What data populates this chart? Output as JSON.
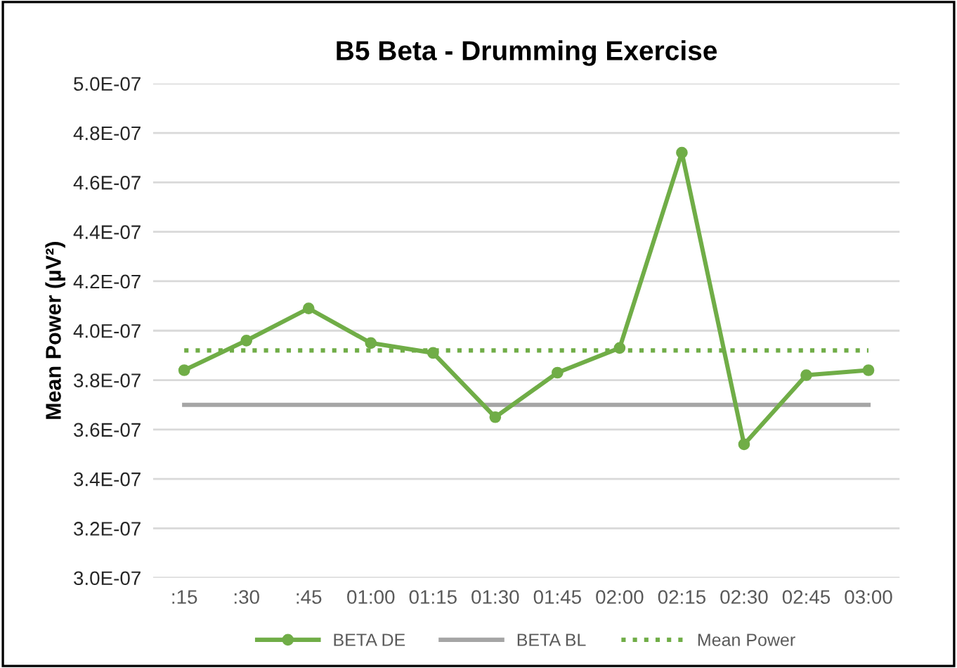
{
  "chart_data": {
    "type": "line",
    "title": "B5 Beta - Drumming Exercise",
    "ylabel": "Mean Power (µV²)",
    "categories": [
      ":15",
      ":30",
      ":45",
      "01:00",
      "01:15",
      "01:30",
      "01:45",
      "02:00",
      "02:15",
      "02:30",
      "02:45",
      "03:00"
    ],
    "series": [
      {
        "name": "BETA DE",
        "color": "#70ad47",
        "marker": "circle",
        "line_style": "solid",
        "values": [
          3.84e-07,
          3.96e-07,
          4.09e-07,
          3.95e-07,
          3.91e-07,
          3.65e-07,
          3.83e-07,
          3.93e-07,
          4.72e-07,
          3.54e-07,
          3.82e-07,
          3.84e-07
        ]
      },
      {
        "name": "BETA BL",
        "color": "#a5a5a5",
        "marker": "none",
        "line_style": "solid",
        "values": [
          3.7e-07,
          3.7e-07,
          3.7e-07,
          3.7e-07,
          3.7e-07,
          3.7e-07,
          3.7e-07,
          3.7e-07,
          3.7e-07,
          3.7e-07,
          3.7e-07,
          3.7e-07
        ]
      },
      {
        "name": "Mean Power",
        "color": "#70ad47",
        "marker": "none",
        "line_style": "dotted",
        "values": [
          3.92e-07,
          3.92e-07,
          3.92e-07,
          3.92e-07,
          3.92e-07,
          3.92e-07,
          3.92e-07,
          3.92e-07,
          3.92e-07,
          3.92e-07,
          3.92e-07,
          3.92e-07
        ]
      }
    ],
    "ylim": [
      3e-07,
      5e-07
    ],
    "yticks": [
      {
        "value": 3e-07,
        "label": "3.0E-07"
      },
      {
        "value": 3.2e-07,
        "label": "3.2E-07"
      },
      {
        "value": 3.4e-07,
        "label": "3.4E-07"
      },
      {
        "value": 3.6e-07,
        "label": "3.6E-07"
      },
      {
        "value": 3.8e-07,
        "label": "3.8E-07"
      },
      {
        "value": 4e-07,
        "label": "4.0E-07"
      },
      {
        "value": 4.2e-07,
        "label": "4.2E-07"
      },
      {
        "value": 4.4e-07,
        "label": "4.4E-07"
      },
      {
        "value": 4.6e-07,
        "label": "4.6E-07"
      },
      {
        "value": 4.8e-07,
        "label": "4.8E-07"
      },
      {
        "value": 5e-07,
        "label": "5.0E-07"
      }
    ],
    "grid": "y",
    "legend": "bottom"
  }
}
